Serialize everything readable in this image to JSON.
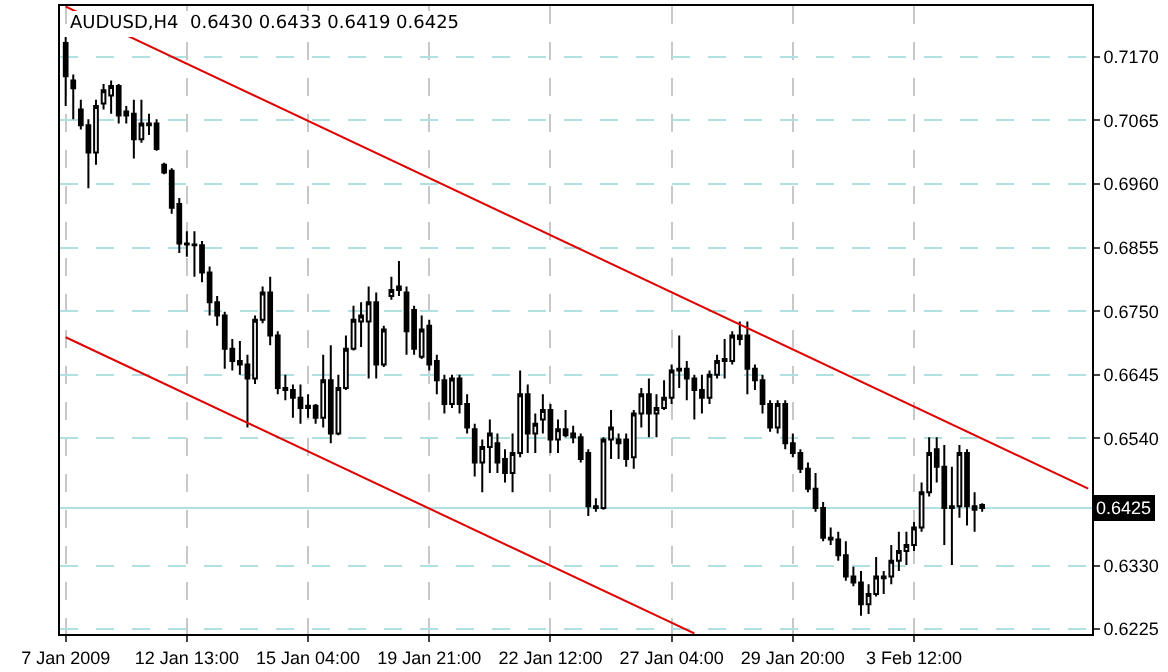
{
  "chart_data": {
    "type": "candlestick",
    "title": "AUDUSD,H4  0.6430 0.6433 0.6419 0.6425",
    "categories": [
      "7 Jan 2009",
      null,
      null,
      null,
      null,
      null,
      null,
      null,
      null,
      null,
      null,
      null,
      null,
      null,
      null,
      null,
      "12 Jan 13:00",
      null,
      null,
      null,
      null,
      null,
      null,
      null,
      null,
      null,
      null,
      null,
      null,
      null,
      null,
      null,
      "15 Jan 04:00",
      null,
      null,
      null,
      null,
      null,
      null,
      null,
      null,
      null,
      null,
      null,
      null,
      null,
      null,
      null,
      "19 Jan 21:00",
      null,
      null,
      null,
      null,
      null,
      null,
      null,
      null,
      null,
      null,
      null,
      null,
      null,
      null,
      null,
      "22 Jan 12:00",
      null,
      null,
      null,
      null,
      null,
      null,
      null,
      null,
      null,
      null,
      null,
      null,
      null,
      null,
      null,
      "27 Jan 04:00",
      null,
      null,
      null,
      null,
      null,
      null,
      null,
      null,
      null,
      null,
      null,
      null,
      null,
      null,
      null,
      "29 Jan 20:00",
      null,
      null,
      null,
      null,
      null,
      null,
      null,
      null,
      null,
      null,
      null,
      null,
      null,
      null,
      null,
      "3 Feb 12:00",
      null,
      null,
      null,
      null,
      null,
      null,
      null,
      null,
      null,
      null,
      null,
      null,
      null,
      null,
      null,
      null,
      null,
      null,
      null,
      null,
      null,
      null,
      null
    ],
    "ohlc": [
      [
        0.7193,
        0.7203,
        0.7089,
        0.7138
      ],
      [
        0.7131,
        0.7141,
        0.7067,
        0.7118
      ],
      [
        0.7083,
        0.7099,
        0.705,
        0.7057
      ],
      [
        0.7057,
        0.7067,
        0.6953,
        0.7012
      ],
      [
        0.7012,
        0.7099,
        0.6992,
        0.7089
      ],
      [
        0.7093,
        0.7125,
        0.7083,
        0.7115
      ],
      [
        0.7106,
        0.7131,
        0.7076,
        0.7122
      ],
      [
        0.7122,
        0.7125,
        0.706,
        0.7073
      ],
      [
        0.708,
        0.7089,
        0.706,
        0.7073
      ],
      [
        0.7076,
        0.7099,
        0.7002,
        0.7034
      ],
      [
        0.7034,
        0.7099,
        0.7028,
        0.706
      ],
      [
        0.706,
        0.7076,
        0.7041,
        0.7057
      ],
      [
        0.706,
        0.7067,
        0.7015,
        0.7018
      ],
      [
        0.6992,
        0.6995,
        0.6976,
        0.6979
      ],
      [
        0.6982,
        0.6986,
        0.6911,
        0.6921
      ],
      [
        0.6927,
        0.6937,
        0.6846,
        0.6862
      ],
      [
        0.6862,
        0.6882,
        0.684,
        0.686
      ],
      [
        0.686,
        0.6882,
        0.6807,
        0.6859
      ],
      [
        0.6859,
        0.6866,
        0.6798,
        0.6814
      ],
      [
        0.6814,
        0.6824,
        0.6743,
        0.6765
      ],
      [
        0.6765,
        0.6775,
        0.6726,
        0.6743
      ],
      [
        0.6743,
        0.6749,
        0.6655,
        0.6688
      ],
      [
        0.6688,
        0.6704,
        0.6652,
        0.6668
      ],
      [
        0.6668,
        0.6701,
        0.6645,
        0.6662
      ],
      [
        0.6662,
        0.6678,
        0.6558,
        0.6639
      ],
      [
        0.6639,
        0.6743,
        0.663,
        0.6736
      ],
      [
        0.6736,
        0.6791,
        0.673,
        0.6781
      ],
      [
        0.6781,
        0.6807,
        0.6694,
        0.671
      ],
      [
        0.671,
        0.6717,
        0.6613,
        0.6623
      ],
      [
        0.6623,
        0.6645,
        0.6603,
        0.662
      ],
      [
        0.662,
        0.6629,
        0.6574,
        0.6607
      ],
      [
        0.6607,
        0.6629,
        0.6564,
        0.659
      ],
      [
        0.659,
        0.6613,
        0.6574,
        0.6594
      ],
      [
        0.6594,
        0.6597,
        0.6564,
        0.6574
      ],
      [
        0.6574,
        0.6678,
        0.6558,
        0.6636
      ],
      [
        0.6636,
        0.6694,
        0.6532,
        0.6548
      ],
      [
        0.6548,
        0.6645,
        0.6545,
        0.6623
      ],
      [
        0.6623,
        0.671,
        0.662,
        0.6688
      ],
      [
        0.6688,
        0.6759,
        0.6685,
        0.6736
      ],
      [
        0.6733,
        0.6765,
        0.6691,
        0.6743
      ],
      [
        0.6733,
        0.6791,
        0.6639,
        0.6765
      ],
      [
        0.6765,
        0.6781,
        0.6639,
        0.6662
      ],
      [
        0.6662,
        0.6726,
        0.6658,
        0.672
      ],
      [
        0.6775,
        0.6807,
        0.6769,
        0.6785
      ],
      [
        0.6785,
        0.6833,
        0.6775,
        0.6791
      ],
      [
        0.6781,
        0.6791,
        0.6678,
        0.6717
      ],
      [
        0.6752,
        0.6759,
        0.6678,
        0.6688
      ],
      [
        0.6675,
        0.6743,
        0.6671,
        0.672
      ],
      [
        0.6726,
        0.6736,
        0.6652,
        0.6662
      ],
      [
        0.6668,
        0.6678,
        0.6613,
        0.6636
      ],
      [
        0.6636,
        0.6645,
        0.6581,
        0.6597
      ],
      [
        0.6597,
        0.6645,
        0.659,
        0.6639
      ],
      [
        0.6639,
        0.6645,
        0.6581,
        0.6597
      ],
      [
        0.6597,
        0.6613,
        0.6548,
        0.6558
      ],
      [
        0.6555,
        0.6564,
        0.6477,
        0.65
      ],
      [
        0.65,
        0.6538,
        0.6451,
        0.6526
      ],
      [
        0.6526,
        0.6571,
        0.6483,
        0.6548
      ],
      [
        0.6532,
        0.6548,
        0.6483,
        0.65
      ],
      [
        0.6506,
        0.6522,
        0.6467,
        0.6483
      ],
      [
        0.6483,
        0.6548,
        0.6451,
        0.6516
      ],
      [
        0.6516,
        0.6652,
        0.6509,
        0.6613
      ],
      [
        0.6613,
        0.6629,
        0.6516,
        0.6548
      ],
      [
        0.6548,
        0.6581,
        0.6516,
        0.6564
      ],
      [
        0.6571,
        0.6613,
        0.6548,
        0.6587
      ],
      [
        0.6587,
        0.6597,
        0.6516,
        0.6538
      ],
      [
        0.6538,
        0.6571,
        0.6516,
        0.6555
      ],
      [
        0.6555,
        0.6587,
        0.6542,
        0.6545
      ],
      [
        0.6548,
        0.6561,
        0.6532,
        0.6542
      ],
      [
        0.6542,
        0.6548,
        0.65,
        0.6506
      ],
      [
        0.6516,
        0.6522,
        0.6412,
        0.6428
      ],
      [
        0.6428,
        0.6441,
        0.6419,
        0.6425
      ],
      [
        0.6425,
        0.6542,
        0.6422,
        0.6538
      ],
      [
        0.6538,
        0.6587,
        0.6506,
        0.6558
      ],
      [
        0.6532,
        0.6548,
        0.6506,
        0.6538
      ],
      [
        0.6538,
        0.6548,
        0.6493,
        0.6506
      ],
      [
        0.6509,
        0.6587,
        0.649,
        0.6581
      ],
      [
        0.6581,
        0.6623,
        0.6558,
        0.6613
      ],
      [
        0.6613,
        0.6639,
        0.6542,
        0.6581
      ],
      [
        0.6581,
        0.6613,
        0.6542,
        0.659
      ],
      [
        0.659,
        0.6636,
        0.6587,
        0.6607
      ],
      [
        0.6607,
        0.6662,
        0.6597,
        0.6652
      ],
      [
        0.6652,
        0.671,
        0.6623,
        0.6655
      ],
      [
        0.6655,
        0.6668,
        0.6603,
        0.6639
      ],
      [
        0.6639,
        0.6645,
        0.6571,
        0.662
      ],
      [
        0.662,
        0.6645,
        0.6581,
        0.6607
      ],
      [
        0.6607,
        0.6652,
        0.6597,
        0.6645
      ],
      [
        0.6645,
        0.6678,
        0.6639,
        0.6668
      ],
      [
        0.6668,
        0.6704,
        0.6639,
        0.6671
      ],
      [
        0.6668,
        0.6717,
        0.6662,
        0.671
      ],
      [
        0.6704,
        0.6733,
        0.6694,
        0.671
      ],
      [
        0.671,
        0.6733,
        0.6613,
        0.6655
      ],
      [
        0.6655,
        0.6662,
        0.662,
        0.6636
      ],
      [
        0.6636,
        0.6645,
        0.6581,
        0.6597
      ],
      [
        0.6597,
        0.6603,
        0.6551,
        0.6558
      ],
      [
        0.6558,
        0.6603,
        0.6548,
        0.6597
      ],
      [
        0.6597,
        0.6603,
        0.6522,
        0.6532
      ],
      [
        0.6532,
        0.6548,
        0.6509,
        0.6516
      ],
      [
        0.6516,
        0.6522,
        0.6483,
        0.649
      ],
      [
        0.649,
        0.65,
        0.6451,
        0.6457
      ],
      [
        0.6457,
        0.6483,
        0.6419,
        0.6425
      ],
      [
        0.6425,
        0.6435,
        0.637,
        0.6376
      ],
      [
        0.6376,
        0.6393,
        0.6364,
        0.6373
      ],
      [
        0.6373,
        0.6386,
        0.6338,
        0.6347
      ],
      [
        0.6347,
        0.637,
        0.6305,
        0.6312
      ],
      [
        0.6312,
        0.6328,
        0.6296,
        0.6302
      ],
      [
        0.6302,
        0.6321,
        0.6247,
        0.6266
      ],
      [
        0.6266,
        0.6299,
        0.625,
        0.6283
      ],
      [
        0.6283,
        0.6344,
        0.6279,
        0.6312
      ],
      [
        0.6309,
        0.6321,
        0.6283,
        0.6312
      ],
      [
        0.6312,
        0.6364,
        0.6299,
        0.6338
      ],
      [
        0.6338,
        0.6386,
        0.6321,
        0.6354
      ],
      [
        0.6354,
        0.6386,
        0.6331,
        0.6364
      ],
      [
        0.6364,
        0.6402,
        0.6354,
        0.6393
      ],
      [
        0.6393,
        0.6467,
        0.6386,
        0.6451
      ],
      [
        0.6451,
        0.6542,
        0.6444,
        0.6516
      ],
      [
        0.6522,
        0.6542,
        0.6467,
        0.6493
      ],
      [
        0.6493,
        0.6529,
        0.6364,
        0.6425
      ],
      [
        0.6425,
        0.6493,
        0.6331,
        0.6428
      ],
      [
        0.6428,
        0.6529,
        0.6409,
        0.6516
      ],
      [
        0.6516,
        0.6522,
        0.6396,
        0.6428
      ],
      [
        0.6428,
        0.6451,
        0.6386,
        0.6422
      ],
      [
        0.643,
        0.6433,
        0.6419,
        0.6425
      ],
      null,
      null,
      null,
      null,
      null,
      null,
      null,
      null,
      null,
      null,
      null,
      null,
      null,
      null
    ],
    "series": [
      {
        "type": "line",
        "color": "#e00000",
        "values": [
          0.7253,
          null,
          null,
          null,
          null,
          null,
          null,
          null,
          null,
          null,
          null,
          null,
          null,
          null,
          null,
          null,
          null,
          null,
          null,
          null,
          null,
          null,
          null,
          null,
          null,
          null,
          null,
          null,
          null,
          null,
          null,
          null,
          null,
          null,
          null,
          null,
          null,
          null,
          null,
          null,
          null,
          null,
          null,
          null,
          null,
          null,
          null,
          null,
          null,
          null,
          null,
          null,
          null,
          null,
          null,
          null,
          null,
          null,
          null,
          null,
          null,
          null,
          null,
          null,
          null,
          null,
          null,
          null,
          null,
          null,
          null,
          null,
          null,
          null,
          null,
          null,
          null,
          null,
          null,
          null,
          null,
          null,
          null,
          null,
          null,
          null,
          null,
          null,
          null,
          null,
          null,
          null,
          null,
          null,
          null,
          null,
          null,
          null,
          null,
          null,
          null,
          null,
          null,
          null,
          null,
          null,
          null,
          null,
          null,
          null,
          null,
          null,
          null,
          null,
          null,
          null,
          null,
          null,
          null,
          null,
          null,
          null,
          null,
          null,
          null,
          null,
          null,
          null,
          null,
          null,
          null,
          null,
          null,
          null,
          null,
          0.6457
        ]
      },
      {
        "type": "line",
        "color": "#e00000",
        "values": [
          0.6707,
          null,
          null,
          null,
          null,
          null,
          null,
          null,
          null,
          null,
          null,
          null,
          null,
          null,
          null,
          null,
          null,
          null,
          null,
          null,
          null,
          null,
          null,
          null,
          null,
          null,
          null,
          null,
          null,
          null,
          null,
          null,
          null,
          null,
          null,
          null,
          null,
          null,
          null,
          null,
          null,
          null,
          null,
          null,
          null,
          null,
          null,
          null,
          null,
          null,
          null,
          null,
          null,
          null,
          null,
          null,
          null,
          null,
          null,
          null,
          null,
          null,
          null,
          null,
          null,
          null,
          null,
          null,
          null,
          null,
          null,
          null,
          null,
          null,
          null,
          null,
          null,
          null,
          null,
          null,
          null,
          null,
          null,
          0.6218,
          null,
          null,
          null,
          null,
          null,
          null,
          null,
          null,
          null,
          null,
          null,
          null,
          null,
          null,
          null,
          null,
          null,
          null,
          null,
          null,
          null,
          null,
          null,
          null,
          null,
          null,
          null,
          null,
          null,
          null,
          null,
          null,
          null,
          null,
          null,
          null,
          null,
          null,
          null,
          null,
          null,
          null,
          null,
          null,
          null,
          null,
          null,
          null,
          null,
          null,
          null,
          null
        ]
      }
    ],
    "ylim": [
      0.6217,
      0.7254
    ],
    "yticks": [
      {
        "value": 0.6225,
        "label": "0.6225"
      },
      {
        "value": 0.633,
        "label": "0.6330"
      },
      {
        "value": 0.654,
        "label": "0.6540"
      },
      {
        "value": 0.6645,
        "label": "0.6645"
      },
      {
        "value": 0.675,
        "label": "0.6750"
      },
      {
        "value": 0.6855,
        "label": "0.6855"
      },
      {
        "value": 0.696,
        "label": "0.6960"
      },
      {
        "value": 0.7065,
        "label": "0.7065"
      },
      {
        "value": 0.717,
        "label": "0.7170"
      }
    ],
    "ref_lines": [
      {
        "axis": "y",
        "value": 0.6425,
        "label": "0.6425",
        "color": "#b0e0e0"
      }
    ],
    "grid": true
  }
}
